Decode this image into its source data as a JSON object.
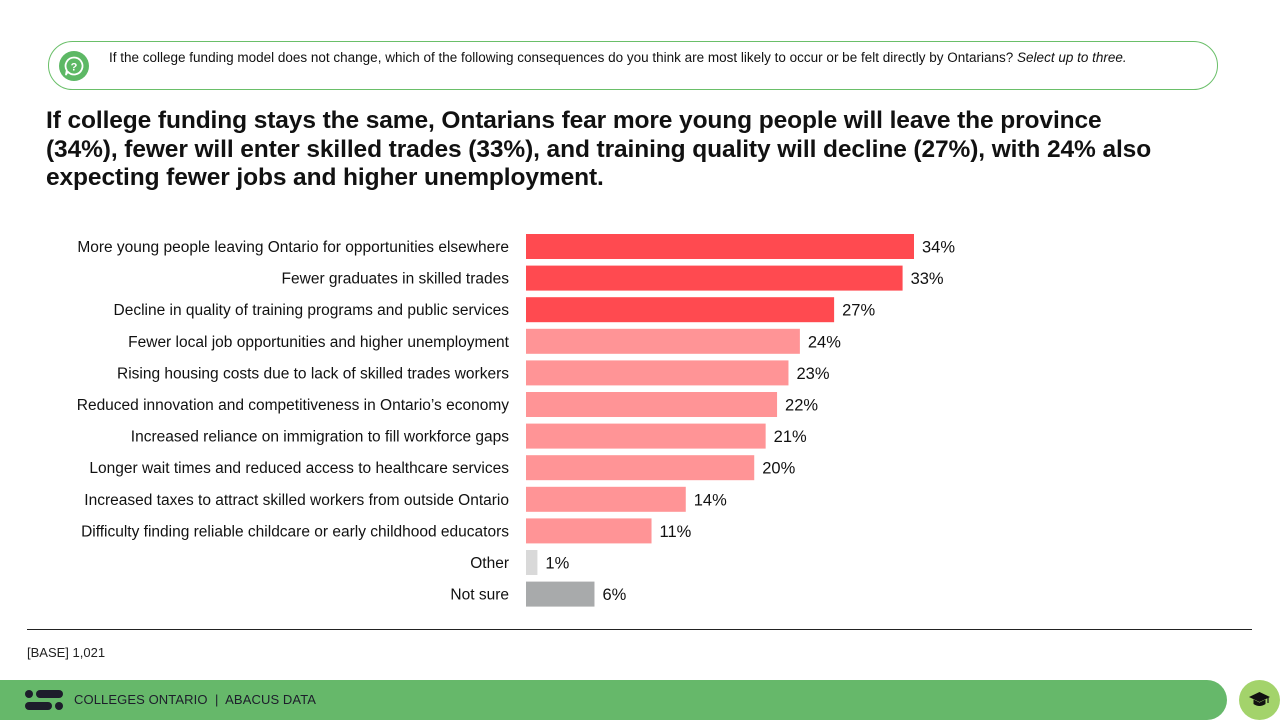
{
  "question": {
    "icon": "question-bubble-icon",
    "text": "If the college funding model does not change, which of the following consequences do you think are most likely to occur or be felt directly by Ontarians?",
    "instruction": "Select up to three."
  },
  "headline": "If college funding stays the same, Ontarians fear more young people will leave the province (34%), fewer will enter skilled trades (33%), and training quality will decline (27%), with 24% also expecting fewer jobs and higher unemployment.",
  "chart_data": {
    "type": "bar",
    "orientation": "horizontal",
    "title": "",
    "xlabel": "",
    "ylabel": "",
    "xlim": [
      0,
      34
    ],
    "grid": false,
    "legend": "none",
    "value_suffix": "%",
    "categories": [
      "More young people leaving Ontario for opportunities elsewhere",
      "Fewer graduates in skilled trades",
      "Decline in quality of training programs and public services",
      "Fewer local job opportunities and higher unemployment",
      "Rising housing costs due to lack of skilled trades workers",
      "Reduced innovation and competitiveness in Ontario’s economy",
      "Increased reliance on immigration to fill workforce gaps",
      "Longer wait times and reduced access to healthcare services",
      "Increased taxes to attract skilled workers from outside Ontario",
      "Difficulty finding reliable childcare or early childhood educators",
      "Other",
      "Not sure"
    ],
    "values": [
      34,
      33,
      27,
      24,
      23,
      22,
      21,
      20,
      14,
      11,
      1,
      6
    ],
    "colors": [
      "#ff4a50",
      "#ff4a50",
      "#ff4a50",
      "#ff9496",
      "#ff9496",
      "#ff9496",
      "#ff9496",
      "#ff9496",
      "#ff9496",
      "#ff9496",
      "#d9d9d9",
      "#a8aaab"
    ]
  },
  "footer": {
    "base_note": "[BASE] 1,021",
    "brand": "COLLEGES ONTARIO  |  ABACUS DATA",
    "logo_icon": "abacus-logo-icon",
    "action_icon": "graduation-cap-icon"
  },
  "colors": {
    "accent_green": "#66b86a",
    "highlight_red": "#ff4a50",
    "light_red": "#ff9496"
  }
}
